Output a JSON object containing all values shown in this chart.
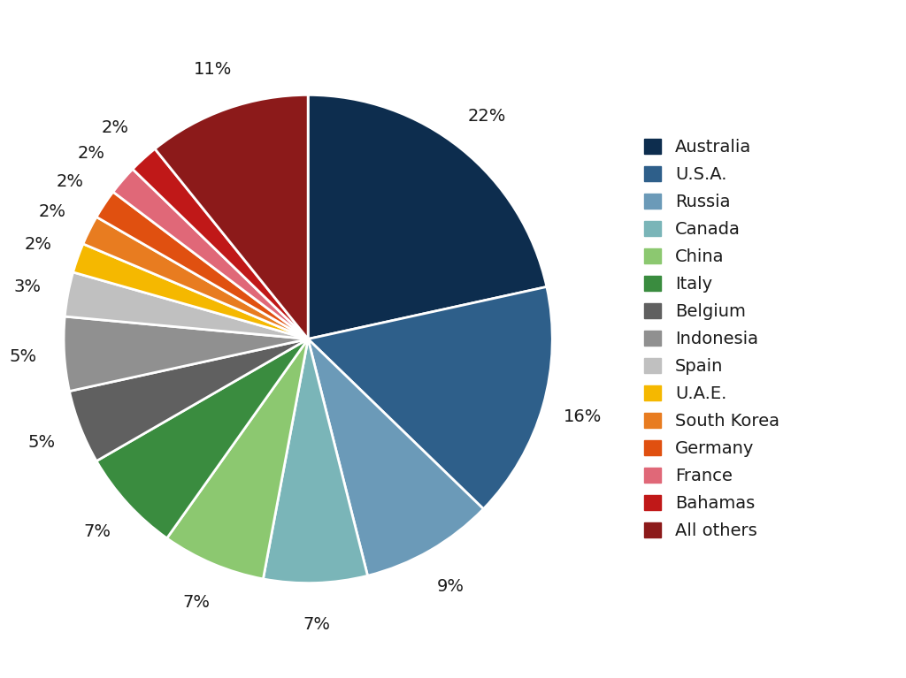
{
  "labels": [
    "Australia",
    "U.S.A.",
    "Russia",
    "Canada",
    "China",
    "Italy",
    "Belgium",
    "Indonesia",
    "Spain",
    "U.A.E.",
    "South Korea",
    "Germany",
    "France",
    "Bahamas",
    "All others"
  ],
  "percentages": [
    22,
    16,
    9,
    7,
    7,
    7,
    5,
    5,
    3,
    2,
    2,
    2,
    2,
    2,
    11
  ],
  "colors": [
    "#0d2d4e",
    "#2e5f8a",
    "#6b9ab8",
    "#7ab5b8",
    "#8cc870",
    "#3a8c3f",
    "#606060",
    "#909090",
    "#c0c0c0",
    "#f5b800",
    "#e87c20",
    "#e05010",
    "#e06878",
    "#c01818",
    "#8c1a1a"
  ],
  "background_color": "#ffffff",
  "text_color": "#1a1a1a",
  "label_fontsize": 14,
  "legend_fontsize": 14,
  "pct_fontsize": 14
}
